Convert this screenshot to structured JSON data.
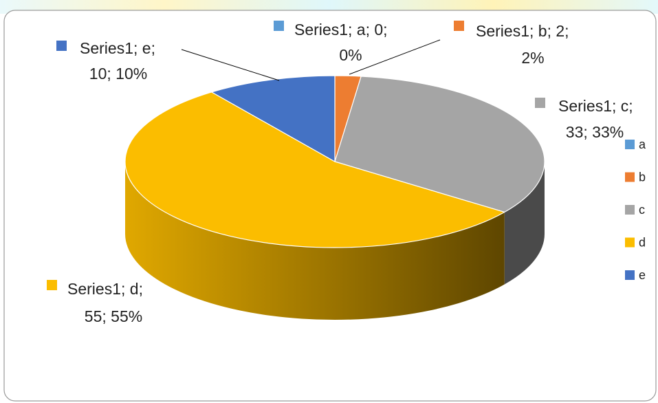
{
  "chart_data": {
    "type": "pie3d",
    "series": [
      {
        "name": "Series1",
        "categories": [
          "a",
          "b",
          "c",
          "d",
          "e"
        ],
        "values": [
          0,
          2,
          33,
          55,
          10
        ],
        "value_labels": [
          "0%",
          "2%",
          "33%",
          "55%",
          "10%"
        ],
        "colors": [
          "#5b9bd5",
          "#ed7d31",
          "#a5a5a5",
          "#fbbd00",
          "#4472c4"
        ]
      }
    ],
    "legend": "right"
  }
}
